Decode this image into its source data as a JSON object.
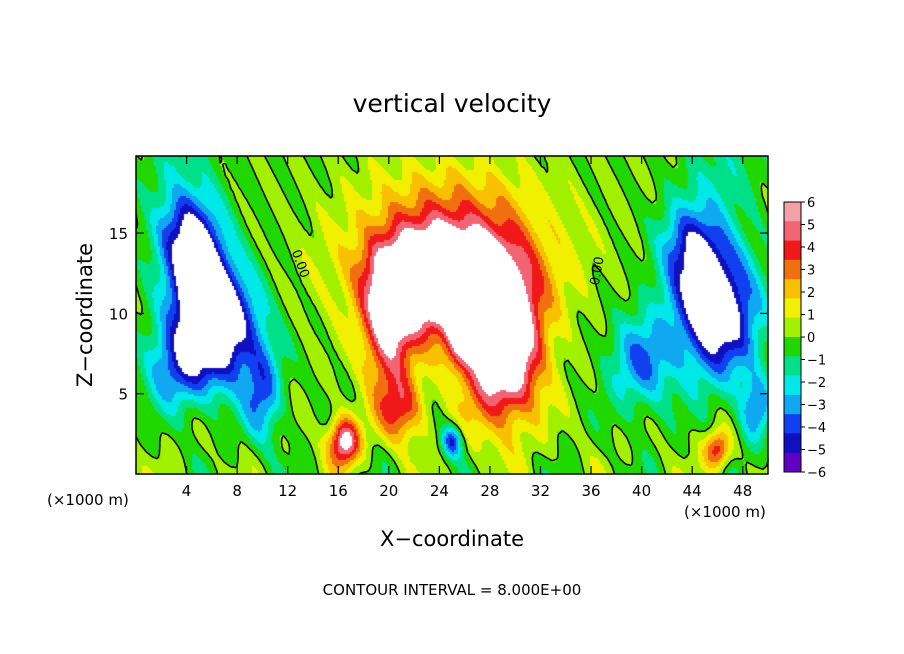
{
  "chart_data": {
    "type": "heatmap",
    "title": "vertical velocity",
    "xlabel": "X−coordinate",
    "ylabel": "Z−coordinate",
    "x_unit_left": "(×1000 m)",
    "x_unit_right": "(×1000 m)",
    "footer": "CONTOUR INTERVAL = 8.000E+00",
    "xlim": [
      0,
      50
    ],
    "ylim": [
      0,
      19.8
    ],
    "x_ticks": [
      4,
      8,
      12,
      16,
      20,
      24,
      28,
      32,
      36,
      40,
      44,
      48
    ],
    "y_ticks": [
      5,
      10,
      15
    ],
    "colorbar": {
      "labels": [
        "6",
        "5",
        "4",
        "3",
        "2",
        "1",
        "0",
        "−1",
        "−2",
        "−3",
        "−4",
        "−5",
        "−6"
      ],
      "colors": [
        "#f4a0a8",
        "#f06474",
        "#f01818",
        "#f07010",
        "#f8c000",
        "#f0f000",
        "#a0f000",
        "#20d800",
        "#00e088",
        "#00e8e8",
        "#10a8f0",
        "#1040f0",
        "#1010c0",
        "#6000c0"
      ]
    },
    "contour_labels": [
      {
        "text": "0.00",
        "x": 12.7,
        "z": 13.0
      },
      {
        "text": "0.00",
        "x": 36.8,
        "z": 12.6
      }
    ],
    "cells": [
      {
        "x": 6.5,
        "z": 9,
        "w": -8,
        "sx": 3.2,
        "sz": 3.5
      },
      {
        "x": 5,
        "z": 12,
        "w": -6,
        "sx": 2.5,
        "sz": 3.5
      },
      {
        "x": 4,
        "z": 15,
        "w": -4.5,
        "sx": 2.5,
        "sz": 2.5
      },
      {
        "x": 3,
        "z": 6.5,
        "w": -3.5,
        "sx": 2.5,
        "sz": 2.5
      },
      {
        "x": 10,
        "z": 5,
        "w": -4,
        "sx": 1.5,
        "sz": 3
      },
      {
        "x": 46,
        "z": 10,
        "w": -8,
        "sx": 3.2,
        "sz": 4
      },
      {
        "x": 44,
        "z": 14,
        "w": -5,
        "sx": 2.5,
        "sz": 3
      },
      {
        "x": 40,
        "z": 7,
        "w": -4,
        "sx": 2.5,
        "sz": 3
      },
      {
        "x": 49,
        "z": 4,
        "w": -4,
        "sx": 1.2,
        "sz": 2
      },
      {
        "x": 24,
        "z": 12,
        "w": 9,
        "sx": 4.5,
        "sz": 3
      },
      {
        "x": 29,
        "z": 8,
        "w": 10,
        "sx": 3,
        "sz": 4.5
      },
      {
        "x": 20,
        "z": 9,
        "w": 6,
        "sx": 2,
        "sz": 4
      },
      {
        "x": 25,
        "z": 13,
        "w": 4,
        "sx": 8,
        "sz": 3.5
      },
      {
        "x": 16.5,
        "z": 2,
        "w": 7,
        "sx": 1.2,
        "sz": 1.5
      },
      {
        "x": 21,
        "z": 4,
        "w": 4,
        "sx": 1.8,
        "sz": 2
      },
      {
        "x": 25.5,
        "z": 8,
        "w": 3,
        "sx": 1.2,
        "sz": 1.5
      },
      {
        "x": 46,
        "z": 1.5,
        "w": 5,
        "sx": 1,
        "sz": 1.2
      },
      {
        "x": 25,
        "z": 2,
        "w": -5,
        "sx": 0.8,
        "sz": 1
      },
      {
        "x": 3.5,
        "z": 19,
        "w": -1.5,
        "sx": 3,
        "sz": 3
      },
      {
        "x": 46.5,
        "z": 19,
        "w": -1.5,
        "sx": 3,
        "sz": 3
      },
      {
        "x": 25,
        "z": 17,
        "w": 2,
        "sx": 7,
        "sz": 3
      }
    ]
  }
}
